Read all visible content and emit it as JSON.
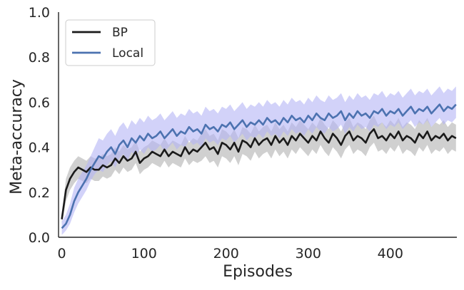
{
  "chart_data": {
    "type": "line",
    "title": "",
    "xlabel": "Episodes",
    "ylabel": "Meta-accuracy",
    "xlim": [
      -4,
      481
    ],
    "ylim": [
      0.0,
      1.0
    ],
    "xticks": [
      0,
      100,
      200,
      300,
      400
    ],
    "xtick_labels": [
      "0",
      "100",
      "200",
      "300",
      "400"
    ],
    "yticks": [
      0.0,
      0.2,
      0.4,
      0.6,
      0.8,
      1.0
    ],
    "ytick_labels": [
      "0.0",
      "0.2",
      "0.4",
      "0.6",
      "0.8",
      "1.0"
    ],
    "grid": false,
    "legend_position": "top-left",
    "x": [
      0,
      5,
      10,
      15,
      20,
      25,
      30,
      35,
      40,
      45,
      50,
      55,
      60,
      65,
      70,
      75,
      80,
      85,
      90,
      95,
      100,
      105,
      110,
      115,
      120,
      125,
      130,
      135,
      140,
      145,
      150,
      155,
      160,
      165,
      170,
      175,
      180,
      185,
      190,
      195,
      200,
      205,
      210,
      215,
      220,
      225,
      230,
      235,
      240,
      245,
      250,
      255,
      260,
      265,
      270,
      275,
      280,
      285,
      290,
      295,
      300,
      305,
      310,
      315,
      320,
      325,
      330,
      335,
      340,
      345,
      350,
      355,
      360,
      365,
      370,
      375,
      380,
      385,
      390,
      395,
      400,
      405,
      410,
      415,
      420,
      425,
      430,
      435,
      440,
      445,
      450,
      455,
      460,
      465,
      470,
      475,
      480
    ],
    "series": [
      {
        "name": "BP",
        "color": "#1a1a1a",
        "band_color": "#c8c8c8",
        "values": [
          0.08,
          0.21,
          0.26,
          0.29,
          0.31,
          0.3,
          0.29,
          0.31,
          0.3,
          0.3,
          0.32,
          0.31,
          0.32,
          0.35,
          0.33,
          0.36,
          0.34,
          0.35,
          0.38,
          0.33,
          0.35,
          0.36,
          0.38,
          0.37,
          0.36,
          0.39,
          0.36,
          0.38,
          0.37,
          0.36,
          0.4,
          0.37,
          0.39,
          0.38,
          0.4,
          0.42,
          0.39,
          0.4,
          0.37,
          0.42,
          0.41,
          0.39,
          0.42,
          0.38,
          0.43,
          0.42,
          0.4,
          0.44,
          0.41,
          0.43,
          0.44,
          0.41,
          0.45,
          0.42,
          0.44,
          0.41,
          0.45,
          0.43,
          0.46,
          0.44,
          0.42,
          0.45,
          0.43,
          0.47,
          0.44,
          0.42,
          0.46,
          0.44,
          0.41,
          0.45,
          0.47,
          0.43,
          0.45,
          0.44,
          0.42,
          0.46,
          0.48,
          0.44,
          0.45,
          0.43,
          0.46,
          0.44,
          0.47,
          0.43,
          0.45,
          0.44,
          0.42,
          0.46,
          0.44,
          0.47,
          0.43,
          0.45,
          0.44,
          0.46,
          0.43,
          0.45,
          0.44
        ],
        "lower": [
          0.06,
          0.16,
          0.21,
          0.24,
          0.26,
          0.25,
          0.24,
          0.26,
          0.25,
          0.25,
          0.27,
          0.26,
          0.27,
          0.3,
          0.28,
          0.31,
          0.29,
          0.3,
          0.33,
          0.28,
          0.3,
          0.31,
          0.33,
          0.32,
          0.31,
          0.34,
          0.31,
          0.33,
          0.32,
          0.31,
          0.35,
          0.32,
          0.34,
          0.33,
          0.34,
          0.36,
          0.33,
          0.34,
          0.31,
          0.36,
          0.35,
          0.33,
          0.36,
          0.32,
          0.37,
          0.36,
          0.34,
          0.38,
          0.35,
          0.37,
          0.38,
          0.35,
          0.39,
          0.36,
          0.38,
          0.35,
          0.39,
          0.37,
          0.4,
          0.38,
          0.36,
          0.39,
          0.37,
          0.41,
          0.38,
          0.36,
          0.4,
          0.38,
          0.35,
          0.39,
          0.41,
          0.37,
          0.39,
          0.38,
          0.36,
          0.4,
          0.42,
          0.38,
          0.39,
          0.37,
          0.4,
          0.38,
          0.41,
          0.37,
          0.39,
          0.38,
          0.36,
          0.4,
          0.38,
          0.41,
          0.37,
          0.39,
          0.38,
          0.4,
          0.37,
          0.39,
          0.38
        ],
        "upper": [
          0.1,
          0.26,
          0.31,
          0.34,
          0.36,
          0.35,
          0.34,
          0.36,
          0.35,
          0.35,
          0.37,
          0.36,
          0.37,
          0.4,
          0.38,
          0.41,
          0.39,
          0.4,
          0.43,
          0.38,
          0.4,
          0.41,
          0.43,
          0.42,
          0.41,
          0.44,
          0.41,
          0.43,
          0.42,
          0.41,
          0.45,
          0.42,
          0.44,
          0.43,
          0.46,
          0.48,
          0.45,
          0.46,
          0.43,
          0.48,
          0.47,
          0.45,
          0.48,
          0.44,
          0.49,
          0.48,
          0.46,
          0.5,
          0.47,
          0.49,
          0.5,
          0.47,
          0.51,
          0.48,
          0.5,
          0.47,
          0.51,
          0.49,
          0.52,
          0.5,
          0.48,
          0.51,
          0.49,
          0.53,
          0.5,
          0.48,
          0.52,
          0.5,
          0.47,
          0.51,
          0.53,
          0.49,
          0.51,
          0.5,
          0.48,
          0.52,
          0.54,
          0.5,
          0.51,
          0.49,
          0.52,
          0.5,
          0.53,
          0.49,
          0.51,
          0.5,
          0.48,
          0.52,
          0.5,
          0.53,
          0.49,
          0.51,
          0.5,
          0.52,
          0.49,
          0.51,
          0.5
        ]
      },
      {
        "name": "Local",
        "color": "#4c72b0",
        "band_color": "#b4b4f5",
        "values": [
          0.04,
          0.06,
          0.1,
          0.16,
          0.2,
          0.23,
          0.26,
          0.3,
          0.33,
          0.36,
          0.35,
          0.38,
          0.4,
          0.37,
          0.41,
          0.43,
          0.4,
          0.44,
          0.42,
          0.45,
          0.43,
          0.46,
          0.44,
          0.45,
          0.47,
          0.44,
          0.46,
          0.48,
          0.45,
          0.47,
          0.46,
          0.49,
          0.47,
          0.48,
          0.46,
          0.5,
          0.48,
          0.49,
          0.47,
          0.5,
          0.49,
          0.51,
          0.48,
          0.5,
          0.52,
          0.49,
          0.51,
          0.5,
          0.52,
          0.5,
          0.53,
          0.51,
          0.52,
          0.5,
          0.53,
          0.51,
          0.54,
          0.52,
          0.53,
          0.51,
          0.54,
          0.52,
          0.55,
          0.53,
          0.52,
          0.55,
          0.53,
          0.54,
          0.56,
          0.52,
          0.55,
          0.53,
          0.56,
          0.54,
          0.55,
          0.53,
          0.56,
          0.55,
          0.57,
          0.54,
          0.56,
          0.55,
          0.57,
          0.54,
          0.56,
          0.58,
          0.55,
          0.57,
          0.56,
          0.58,
          0.55,
          0.57,
          0.59,
          0.56,
          0.58,
          0.57,
          0.59
        ],
        "lower": [
          0.01,
          0.03,
          0.06,
          0.11,
          0.15,
          0.18,
          0.21,
          0.25,
          0.28,
          0.3,
          0.29,
          0.32,
          0.34,
          0.31,
          0.35,
          0.37,
          0.34,
          0.38,
          0.36,
          0.39,
          0.37,
          0.4,
          0.38,
          0.39,
          0.41,
          0.38,
          0.4,
          0.42,
          0.39,
          0.41,
          0.4,
          0.43,
          0.41,
          0.42,
          0.4,
          0.44,
          0.42,
          0.43,
          0.41,
          0.44,
          0.43,
          0.45,
          0.42,
          0.44,
          0.46,
          0.43,
          0.45,
          0.44,
          0.46,
          0.44,
          0.47,
          0.45,
          0.46,
          0.44,
          0.47,
          0.45,
          0.48,
          0.46,
          0.47,
          0.45,
          0.48,
          0.46,
          0.49,
          0.47,
          0.46,
          0.49,
          0.47,
          0.48,
          0.5,
          0.46,
          0.49,
          0.47,
          0.5,
          0.48,
          0.49,
          0.47,
          0.5,
          0.49,
          0.51,
          0.48,
          0.5,
          0.49,
          0.51,
          0.48,
          0.5,
          0.52,
          0.49,
          0.51,
          0.5,
          0.52,
          0.49,
          0.51,
          0.53,
          0.5,
          0.52,
          0.51,
          0.53
        ],
        "upper": [
          0.07,
          0.1,
          0.15,
          0.22,
          0.26,
          0.29,
          0.32,
          0.36,
          0.4,
          0.44,
          0.43,
          0.46,
          0.48,
          0.45,
          0.49,
          0.51,
          0.48,
          0.52,
          0.5,
          0.53,
          0.51,
          0.54,
          0.52,
          0.53,
          0.55,
          0.52,
          0.54,
          0.56,
          0.53,
          0.55,
          0.54,
          0.57,
          0.55,
          0.56,
          0.54,
          0.58,
          0.56,
          0.57,
          0.55,
          0.58,
          0.57,
          0.59,
          0.56,
          0.58,
          0.6,
          0.57,
          0.59,
          0.58,
          0.6,
          0.58,
          0.61,
          0.59,
          0.6,
          0.58,
          0.61,
          0.59,
          0.62,
          0.6,
          0.61,
          0.59,
          0.62,
          0.6,
          0.63,
          0.61,
          0.6,
          0.63,
          0.61,
          0.62,
          0.64,
          0.6,
          0.63,
          0.61,
          0.64,
          0.62,
          0.63,
          0.61,
          0.64,
          0.63,
          0.65,
          0.62,
          0.64,
          0.63,
          0.65,
          0.62,
          0.64,
          0.66,
          0.63,
          0.65,
          0.64,
          0.66,
          0.63,
          0.65,
          0.67,
          0.64,
          0.66,
          0.65,
          0.67
        ]
      }
    ]
  }
}
